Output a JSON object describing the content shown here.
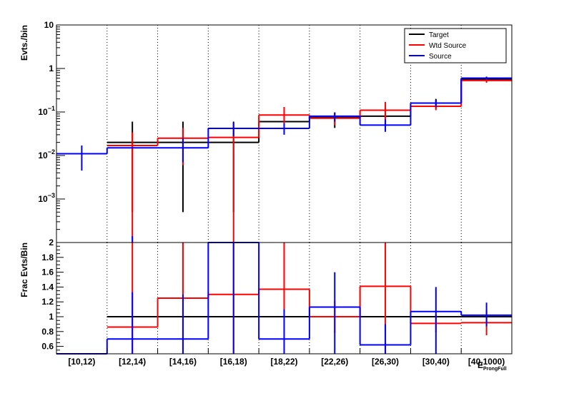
{
  "chart_data": [
    {
      "panel": "top",
      "type": "line",
      "ylabel": "Evts./bin",
      "log_y": true,
      "ylim": [
        0.0001,
        10
      ],
      "y_ticks": [
        {
          "label": "10",
          "value": 10
        },
        {
          "label": "1",
          "value": 1
        },
        {
          "label": "10",
          "exp": "−1",
          "value": 0.1
        },
        {
          "label": "10",
          "exp": "−2",
          "value": 0.01
        },
        {
          "label": "10",
          "exp": "−3",
          "value": 0.001
        }
      ],
      "categories": [
        "[10,12)",
        "[12,14)",
        "[14,16)",
        "[16,18)",
        "[18,22)",
        "[22,26)",
        "[26,30)",
        "[30,40)",
        "[40,1000)"
      ],
      "legend_position": "top-right",
      "series": [
        {
          "name": "Target",
          "color": "#000000",
          "values": [
            null,
            0.02,
            0.02,
            0.02,
            0.06,
            0.077,
            0.08,
            0.16,
            0.57
          ],
          "err_low": [
            null,
            0.0005,
            0.0005,
            0.0005,
            0.045,
            0.043,
            0.048,
            0.12,
            0.52
          ],
          "err_high": [
            null,
            0.06,
            0.06,
            0.06,
            0.11,
            0.098,
            0.12,
            0.2,
            0.62
          ]
        },
        {
          "name": "Wtd Source",
          "color": "#ff0000",
          "values": [
            null,
            0.017,
            0.025,
            0.026,
            0.085,
            0.072,
            0.11,
            0.135,
            0.53
          ],
          "err_low": [
            null,
            8e-05,
            0.006,
            0.0001,
            0.05,
            0.05,
            0.055,
            0.11,
            0.47
          ],
          "err_high": [
            null,
            0.034,
            0.043,
            0.048,
            0.13,
            0.092,
            0.17,
            0.16,
            0.58
          ]
        },
        {
          "name": "Source",
          "color": "#0000ff",
          "values": [
            0.011,
            0.015,
            0.015,
            0.042,
            0.042,
            0.08,
            0.05,
            0.16,
            0.6
          ],
          "err_low": [
            0.0045,
            7e-05,
            0.007,
            0.028,
            0.03,
            0.06,
            0.035,
            0.13,
            0.56
          ],
          "err_high": [
            0.017,
            0.00014,
            0.025,
            0.057,
            0.055,
            0.098,
            0.068,
            0.19,
            0.65
          ]
        }
      ]
    },
    {
      "panel": "bottom",
      "type": "line",
      "ylabel": "Frac Evts/Bin",
      "xlabel": "E",
      "xlabel_sub": "ProngFull",
      "ylim": [
        0.5,
        2.0
      ],
      "y_ticks": [
        "0.6",
        "0.8",
        "1",
        "1.2",
        "1.4",
        "1.6",
        "1.8",
        "2"
      ],
      "categories": [
        "[10,12)",
        "[12,14)",
        "[14,16)",
        "[16,18)",
        "[18,22)",
        "[22,26)",
        "[26,30)",
        "[30,40)",
        "[40,1000)"
      ],
      "series": [
        {
          "name": "Target",
          "color": "#000000",
          "values": [
            null,
            1.0,
            1.0,
            1.0,
            1.0,
            1.0,
            1.0,
            1.0,
            1.0
          ],
          "err_low": [
            null,
            null,
            null,
            null,
            null,
            null,
            null,
            null,
            null
          ],
          "err_high": [
            null,
            null,
            null,
            null,
            null,
            null,
            null,
            null,
            null
          ]
        },
        {
          "name": "Wtd Source",
          "color": "#ff0000",
          "values": [
            null,
            0.86,
            1.25,
            1.3,
            1.37,
            1.0,
            1.41,
            0.91,
            0.92
          ],
          "err_low": [
            null,
            0.5,
            0.5,
            0.5,
            0.5,
            0.78,
            0.5,
            0.79,
            0.75
          ],
          "err_high": [
            null,
            2.0,
            2.0,
            2.0,
            2.0,
            1.22,
            2.0,
            1.03,
            1.09
          ]
        },
        {
          "name": "Source",
          "color": "#0000ff",
          "values": [
            0.5,
            0.7,
            0.7,
            2.0,
            0.7,
            1.13,
            0.62,
            1.07,
            1.02
          ],
          "err_low": [
            null,
            0.5,
            0.5,
            0.5,
            0.5,
            0.5,
            0.5,
            0.5,
            0.87
          ],
          "err_high": [
            null,
            1.33,
            1.3,
            2.0,
            1.1,
            1.6,
            0.9,
            1.4,
            1.19
          ]
        }
      ]
    }
  ]
}
